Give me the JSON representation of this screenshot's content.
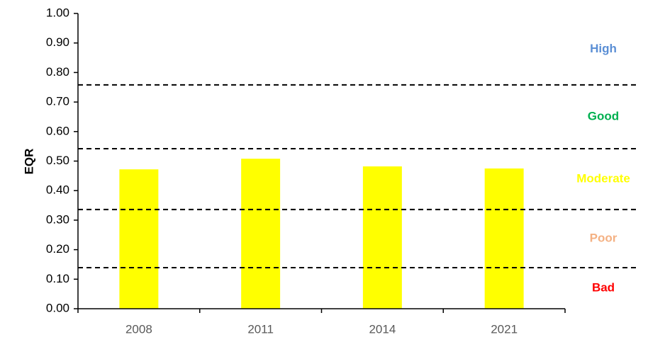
{
  "chart_data": {
    "type": "bar",
    "y_label": "EQR",
    "categories": [
      "2008",
      "2011",
      "2014",
      "2021"
    ],
    "values": [
      0.472,
      0.508,
      0.482,
      0.475
    ],
    "color": "#ffff00",
    "ylim": [
      0,
      1
    ],
    "yticks": [
      {
        "value": 0,
        "label": "0.00"
      },
      {
        "value": 0.1,
        "label": "0.10"
      },
      {
        "value": 0.2,
        "label": "0.20"
      },
      {
        "value": 0.3,
        "label": "0.30"
      },
      {
        "value": 0.4,
        "label": "0.40"
      },
      {
        "value": 0.5,
        "label": "0.50"
      },
      {
        "value": 0.6,
        "label": "0.60"
      },
      {
        "value": 0.7,
        "label": "0.70"
      },
      {
        "value": 0.8,
        "label": "0.80"
      },
      {
        "value": 0.9,
        "label": "0.90"
      },
      {
        "value": 1,
        "label": "1.00"
      }
    ],
    "thresholds": [
      0.758,
      0.542,
      0.336,
      0.139
    ],
    "classes": [
      {
        "name": "High",
        "color": "#5b8fd5"
      },
      {
        "name": "Good",
        "color": "#00b050"
      },
      {
        "name": "Moderate",
        "color": "#ffff00"
      },
      {
        "name": "Poor",
        "color": "#f4b183"
      },
      {
        "name": "Bad",
        "color": "#ff0000"
      }
    ]
  }
}
